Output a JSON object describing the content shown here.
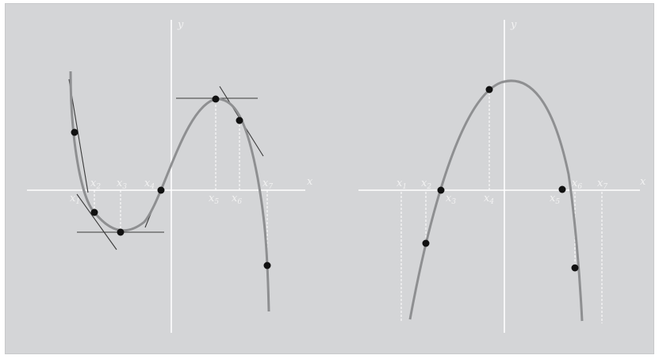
{
  "colors": {
    "panel": "#d4d5d7",
    "axis": "#ffffff",
    "curve": "#8e8f91",
    "tangent": "#3a3a3a",
    "guide": "#ffffff",
    "point": "#111111",
    "label": "#f2f2f2"
  },
  "left_panel": {
    "x_axis_label": "x",
    "y_axis_label": "y",
    "x_markers": [
      {
        "base": "x",
        "sub": "1"
      },
      {
        "base": "x",
        "sub": "2"
      },
      {
        "base": "x",
        "sub": "3"
      },
      {
        "base": "x",
        "sub": "4"
      },
      {
        "base": "x",
        "sub": "5"
      },
      {
        "base": "x",
        "sub": "6"
      },
      {
        "base": "x",
        "sub": "7"
      }
    ]
  },
  "right_panel": {
    "x_axis_label": "x",
    "y_axis_label": "y",
    "x_markers": [
      {
        "base": "x",
        "sub": "1"
      },
      {
        "base": "x",
        "sub": "2"
      },
      {
        "base": "x",
        "sub": "3"
      },
      {
        "base": "x",
        "sub": "4"
      },
      {
        "base": "x",
        "sub": "5"
      },
      {
        "base": "x",
        "sub": "6"
      },
      {
        "base": "x",
        "sub": "7"
      }
    ]
  }
}
